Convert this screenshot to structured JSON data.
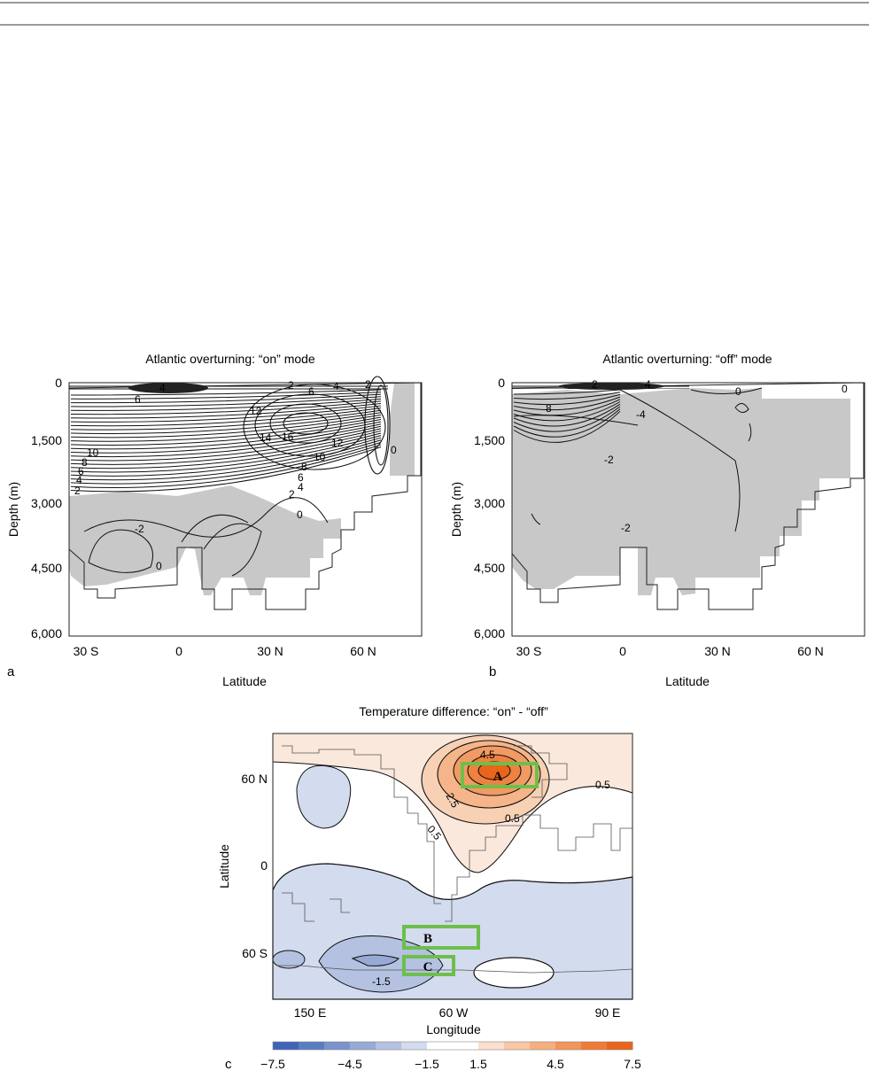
{
  "chart_data": [
    {
      "type": "contour",
      "panel_label": "a",
      "title": "Atlantic overturning: “on” mode",
      "xlabel": "Latitude",
      "ylabel": "Depth (m)",
      "x_ticks": [
        "30 S",
        "0",
        "30 N",
        "60 N"
      ],
      "y_ticks": [
        "0",
        "1,500",
        "3,000",
        "4,500",
        "6,000"
      ],
      "xlim": [
        -35,
        75
      ],
      "ylim": [
        6000,
        0
      ],
      "contour_labels": [
        "4",
        "6",
        "2",
        "6",
        "4",
        "2",
        "12",
        "14",
        "16",
        "12",
        "10",
        "8",
        "6",
        "4",
        "2",
        "0",
        "10",
        "8",
        "6",
        "4",
        "2",
        "-2",
        "0",
        "0"
      ],
      "shading": "negative values shaded grey"
    },
    {
      "type": "contour",
      "panel_label": "b",
      "title": "Atlantic overturning: “off” mode",
      "xlabel": "Latitude",
      "ylabel": "Depth (m)",
      "x_ticks": [
        "30 S",
        "0",
        "30 N",
        "60 N"
      ],
      "y_ticks": [
        "0",
        "1,500",
        "3,000",
        "4,500",
        "6,000"
      ],
      "xlim": [
        -35,
        75
      ],
      "ylim": [
        6000,
        0
      ],
      "contour_labels": [
        "0",
        "2",
        "4",
        "8",
        "0",
        "-4",
        "-2",
        "-2"
      ],
      "shading": "negative values shaded grey"
    },
    {
      "type": "contour-map",
      "panel_label": "c",
      "title": "Temperature difference: “on” - “off”",
      "xlabel": "Longitude",
      "ylabel": "Latitude",
      "x_ticks": [
        "150 E",
        "60 W",
        "90 E"
      ],
      "y_ticks": [
        "60 N",
        "0",
        "60 S"
      ],
      "contour_labels": [
        "4.5",
        "2.5",
        "0.5",
        "0.5",
        "0.5",
        "-1.5"
      ],
      "boxes": [
        "A",
        "B",
        "C"
      ],
      "box_color": "#6cc04a",
      "colorbar": {
        "ticks": [
          "−7.5",
          "−4.5",
          "−1.5",
          "1.5",
          "4.5",
          "7.5"
        ],
        "colors": [
          "#3f63b8",
          "#5a7cc3",
          "#7a93cc",
          "#97aad6",
          "#b4c1e1",
          "#d3dbee",
          "#ffffff",
          "#ffffff",
          "#fbe0cd",
          "#f8c8a5",
          "#f5af7f",
          "#f2955a",
          "#ee7c37",
          "#e8651b"
        ]
      }
    }
  ]
}
